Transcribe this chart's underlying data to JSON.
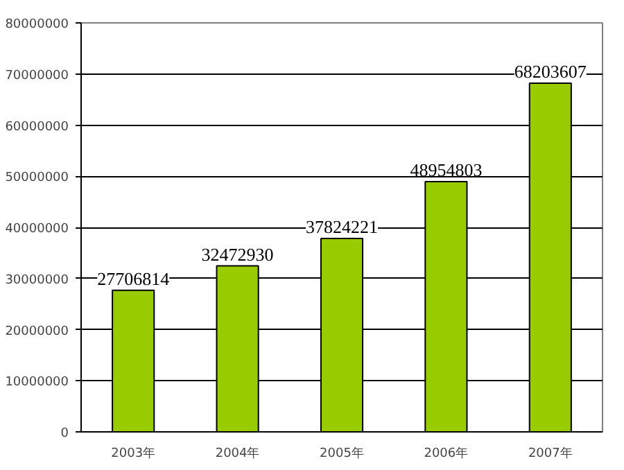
{
  "chart_data": {
    "type": "bar",
    "categories": [
      "2003年",
      "2004年",
      "2005年",
      "2006年",
      "2007年"
    ],
    "values": [
      27706814,
      32472930,
      37824221,
      48954803,
      68203607
    ],
    "color": "#99cc00",
    "ylim": [
      0,
      80000000
    ],
    "yticks": [
      0,
      10000000,
      20000000,
      30000000,
      40000000,
      50000000,
      60000000,
      70000000,
      80000000
    ],
    "grid": "y",
    "data_labels": true
  }
}
